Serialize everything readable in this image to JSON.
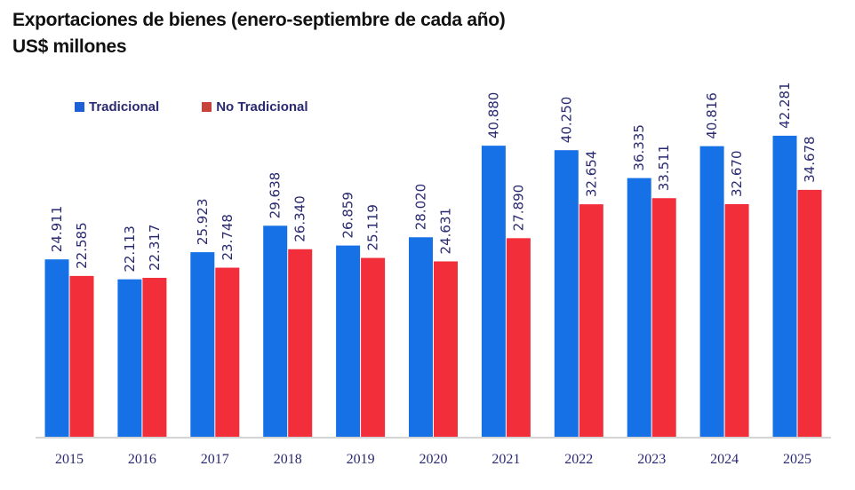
{
  "title_line1": "Exportaciones de bienes (enero-septiembre de cada año)",
  "title_line2": "US$ millones",
  "chart_data": {
    "type": "bar",
    "title": "Exportaciones de bienes (enero-septiembre de cada año)",
    "subtitle": "US$ millones",
    "xlabel": "",
    "ylabel": "",
    "ylim": [
      0,
      42.281
    ],
    "grid": false,
    "legend_position": "top-left",
    "categories": [
      "2015",
      "2016",
      "2017",
      "2018",
      "2019",
      "2020",
      "2021",
      "2022",
      "2023",
      "2024",
      "2025"
    ],
    "series": [
      {
        "name": "Tradicional",
        "color": "#1670e6",
        "values": [
          24.911,
          22.113,
          25.923,
          29.638,
          26.859,
          28.02,
          40.88,
          40.25,
          36.335,
          40.816,
          42.281
        ],
        "labels": [
          "24.911",
          "22.113",
          "25.923",
          "29.638",
          "26.859",
          "28.020",
          "40.880",
          "40.250",
          "36.335",
          "40.816",
          "42.281"
        ]
      },
      {
        "name": "No Tradicional",
        "color": "#f22e3a",
        "values": [
          22.585,
          22.317,
          23.748,
          26.34,
          25.119,
          24.631,
          27.89,
          32.654,
          33.511,
          32.67,
          34.678
        ],
        "labels": [
          "22.585",
          "22.317",
          "23.748",
          "26.340",
          "25.119",
          "24.631",
          "27.890",
          "32.654",
          "33.511",
          "32.670",
          "34.678"
        ]
      }
    ]
  }
}
